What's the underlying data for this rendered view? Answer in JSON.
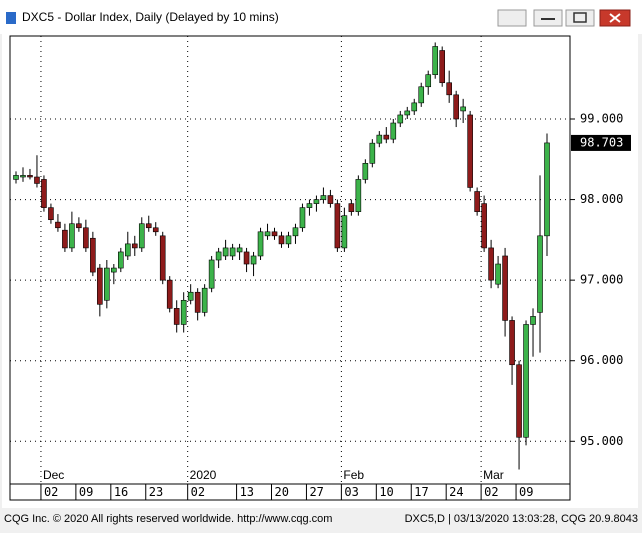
{
  "window": {
    "title": "DXC5 - Dollar Index, Daily (Delayed by 10 mins)"
  },
  "chart_data": {
    "type": "candlestick",
    "categories": [
      null,
      null,
      null,
      null,
      "02",
      null,
      null,
      null,
      null,
      "09",
      null,
      null,
      null,
      null,
      "16",
      null,
      null,
      null,
      null,
      "23",
      null,
      null,
      null,
      null,
      null,
      "02",
      null,
      null,
      null,
      null,
      null,
      null,
      "13",
      null,
      null,
      null,
      null,
      "20",
      null,
      null,
      null,
      null,
      "27",
      null,
      null,
      null,
      null,
      "03",
      null,
      null,
      null,
      null,
      "10",
      null,
      null,
      null,
      null,
      "17",
      null,
      null,
      null,
      null,
      "24",
      null,
      null,
      null,
      null,
      "02",
      null,
      null,
      null,
      null,
      "09",
      null,
      null,
      null,
      null
    ],
    "month_labels": [
      null,
      null,
      null,
      null,
      "Dec",
      null,
      null,
      null,
      null,
      null,
      null,
      null,
      null,
      null,
      null,
      null,
      null,
      null,
      null,
      null,
      null,
      null,
      null,
      null,
      null,
      "2020",
      null,
      null,
      null,
      null,
      null,
      null,
      null,
      null,
      null,
      null,
      null,
      null,
      null,
      null,
      null,
      null,
      null,
      null,
      null,
      null,
      null,
      "Feb",
      null,
      null,
      null,
      null,
      null,
      null,
      null,
      null,
      null,
      null,
      null,
      null,
      null,
      null,
      null,
      null,
      null,
      null,
      null,
      "Mar",
      null,
      null,
      null,
      null,
      null,
      null,
      null,
      null,
      null
    ],
    "open": [
      98.25,
      98.28,
      98.3,
      98.28,
      98.25,
      97.9,
      97.72,
      97.62,
      97.4,
      97.7,
      97.65,
      97.52,
      97.15,
      96.75,
      97.1,
      97.15,
      97.3,
      97.45,
      97.4,
      97.7,
      97.65,
      97.55,
      97.0,
      96.65,
      96.45,
      96.75,
      96.85,
      96.6,
      96.9,
      97.25,
      97.3,
      97.3,
      97.35,
      97.35,
      97.2,
      97.3,
      97.55,
      97.6,
      97.55,
      97.45,
      97.55,
      97.65,
      97.9,
      97.95,
      98.0,
      98.05,
      97.95,
      97.4,
      97.95,
      97.85,
      98.25,
      98.45,
      98.7,
      98.8,
      98.75,
      98.95,
      99.05,
      99.1,
      99.2,
      99.4,
      99.55,
      99.85,
      99.45,
      99.3,
      99.1,
      99.05,
      98.1,
      97.95,
      97.4,
      96.95,
      97.3,
      96.5,
      95.95,
      95.05,
      96.45,
      96.6,
      97.55
    ],
    "high": [
      98.35,
      98.4,
      98.38,
      98.55,
      98.3,
      97.95,
      97.82,
      97.7,
      97.85,
      97.78,
      97.75,
      97.6,
      97.2,
      97.25,
      97.2,
      97.4,
      97.6,
      97.55,
      97.78,
      97.8,
      97.72,
      97.6,
      97.05,
      96.75,
      96.85,
      96.95,
      96.9,
      96.95,
      97.3,
      97.4,
      97.5,
      97.45,
      97.45,
      97.4,
      97.35,
      97.65,
      97.7,
      97.65,
      97.6,
      97.6,
      97.7,
      97.95,
      98.0,
      98.05,
      98.15,
      98.12,
      98.0,
      97.9,
      98.0,
      98.3,
      98.5,
      98.75,
      98.85,
      98.9,
      99.0,
      99.1,
      99.15,
      99.25,
      99.45,
      99.6,
      99.95,
      99.9,
      99.6,
      99.35,
      99.25,
      99.1,
      98.15,
      98.05,
      97.5,
      97.3,
      97.4,
      96.55,
      96.0,
      96.5,
      96.65,
      98.3,
      98.82
    ],
    "low": [
      98.2,
      98.22,
      98.25,
      98.15,
      97.85,
      97.7,
      97.6,
      97.35,
      97.35,
      97.6,
      97.35,
      97.05,
      96.55,
      96.65,
      96.95,
      97.1,
      97.25,
      97.3,
      97.35,
      97.6,
      97.55,
      96.95,
      96.6,
      96.35,
      96.35,
      96.7,
      96.5,
      96.55,
      96.85,
      97.15,
      97.25,
      97.25,
      97.25,
      97.1,
      97.05,
      97.25,
      97.5,
      97.5,
      97.4,
      97.4,
      97.45,
      97.6,
      97.8,
      97.85,
      97.95,
      97.9,
      97.35,
      97.35,
      97.8,
      97.8,
      98.2,
      98.4,
      98.65,
      98.7,
      98.7,
      98.9,
      99.0,
      99.05,
      99.15,
      99.3,
      99.5,
      99.4,
      99.2,
      98.9,
      98.95,
      98.1,
      97.8,
      97.35,
      96.9,
      96.9,
      96.3,
      95.7,
      94.65,
      94.95,
      96.05,
      96.1,
      97.3
    ],
    "close": [
      98.3,
      98.3,
      98.28,
      98.2,
      97.9,
      97.75,
      97.65,
      97.4,
      97.7,
      97.65,
      97.4,
      97.1,
      96.7,
      97.15,
      97.15,
      97.35,
      97.45,
      97.4,
      97.7,
      97.65,
      97.6,
      97.0,
      96.65,
      96.45,
      96.75,
      96.85,
      96.6,
      96.9,
      97.25,
      97.35,
      97.4,
      97.4,
      97.4,
      97.2,
      97.3,
      97.6,
      97.6,
      97.55,
      97.45,
      97.55,
      97.65,
      97.9,
      97.95,
      98.0,
      98.05,
      97.95,
      97.4,
      97.8,
      97.85,
      98.25,
      98.45,
      98.7,
      98.8,
      98.75,
      98.95,
      99.05,
      99.1,
      99.2,
      99.4,
      99.55,
      99.9,
      99.45,
      99.3,
      99.0,
      99.15,
      98.15,
      97.85,
      97.4,
      97.0,
      97.2,
      96.5,
      95.95,
      95.05,
      96.45,
      96.55,
      97.55,
      98.703
    ],
    "up_color": "#3cb34a",
    "down_color": "#8e1b1b",
    "ylim": [
      94.47,
      100.03
    ],
    "yticks": [
      {
        "value": 95,
        "label": "95.000"
      },
      {
        "value": 96,
        "label": "96.000"
      },
      {
        "value": 97,
        "label": "97.000"
      },
      {
        "value": 98,
        "label": "98.000"
      },
      {
        "value": 99,
        "label": "99.000"
      }
    ],
    "grid": true
  },
  "footer": {
    "left": "CQG Inc. © 2020 All rights reserved worldwide. http://www.cqg.com",
    "right": "DXC5,D | 03/13/2020 13:03:28, CQG 20.9.8043"
  }
}
